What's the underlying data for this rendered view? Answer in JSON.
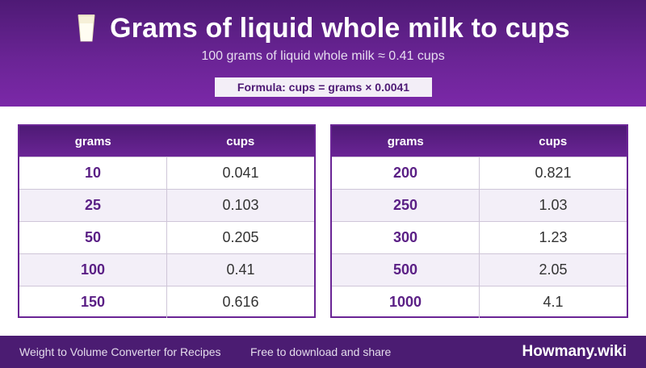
{
  "header": {
    "title": "Grams of liquid whole milk to cups",
    "subtitle": "100 grams of liquid whole milk ≈ 0.41 cups",
    "formula": "Formula: cups = grams × 0.0041",
    "icon": "milk-glass-icon"
  },
  "columns": {
    "grams": "grams",
    "cups": "cups"
  },
  "left_table": [
    {
      "grams": "10",
      "cups": "0.041"
    },
    {
      "grams": "25",
      "cups": "0.103"
    },
    {
      "grams": "50",
      "cups": "0.205"
    },
    {
      "grams": "100",
      "cups": "0.41"
    },
    {
      "grams": "150",
      "cups": "0.616"
    }
  ],
  "right_table": [
    {
      "grams": "200",
      "cups": "0.821"
    },
    {
      "grams": "250",
      "cups": "1.03"
    },
    {
      "grams": "300",
      "cups": "1.23"
    },
    {
      "grams": "500",
      "cups": "2.05"
    },
    {
      "grams": "1000",
      "cups": "4.1"
    }
  ],
  "footer": {
    "left": "Weight to Volume Converter for Recipes",
    "middle": "Free to download and share",
    "brand": "Howmany.wiki"
  },
  "colors": {
    "accent": "#6a2495",
    "header_dark": "#4e1a75",
    "footer": "#4b1c72"
  }
}
